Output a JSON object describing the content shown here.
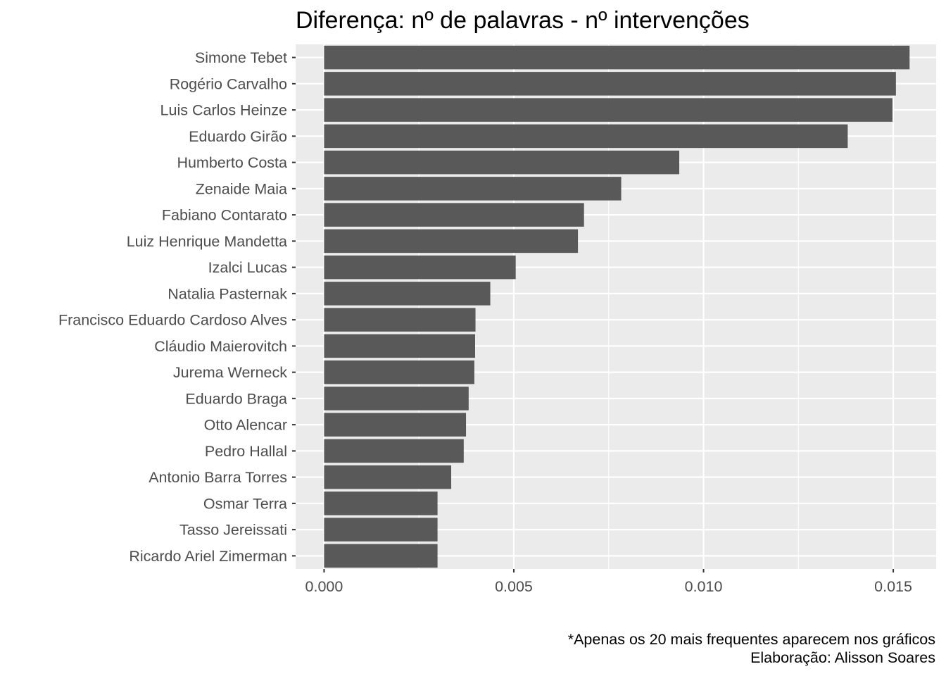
{
  "chart_data": {
    "type": "bar",
    "orientation": "horizontal",
    "title": "Diferença: nº de palavras - nº intervenções",
    "xlabel": "",
    "ylabel": "",
    "categories": [
      "Simone Tebet",
      "Rogério Carvalho",
      "Luis Carlos Heinze",
      "Eduardo Girão",
      "Humberto Costa",
      "Zenaide Maia",
      "Fabiano Contarato",
      "Luiz Henrique Mandetta",
      "Izalci Lucas",
      "Natalia Pasternak",
      "Francisco Eduardo Cardoso Alves",
      "Cláudio Maierovitch",
      "Jurema Werneck",
      "Eduardo Braga",
      "Otto Alencar",
      "Pedro Hallal",
      "Antonio Barra Torres",
      "Osmar Terra",
      "Tasso Jereissati",
      "Ricardo Ariel Zimerman"
    ],
    "values": [
      0.01543,
      0.01507,
      0.01498,
      0.0138,
      0.00936,
      0.00783,
      0.00685,
      0.00669,
      0.00505,
      0.00438,
      0.00399,
      0.00398,
      0.00396,
      0.00381,
      0.00374,
      0.00368,
      0.00335,
      0.00299,
      0.00299,
      0.00299
    ],
    "xlim": [
      -0.00075,
      0.01613
    ],
    "xticks": [
      0.0,
      0.005,
      0.01,
      0.015
    ],
    "xtick_labels": [
      "0.000",
      "0.005",
      "0.010",
      "0.015"
    ],
    "grid": true,
    "bar_color": "#595959",
    "panel_background": "#ebebeb",
    "grid_color": "#ffffff"
  },
  "caption": {
    "line1": "*Apenas os 20 mais frequentes aparecem nos gráficos",
    "line2": "Elaboração: Alisson Soares"
  }
}
